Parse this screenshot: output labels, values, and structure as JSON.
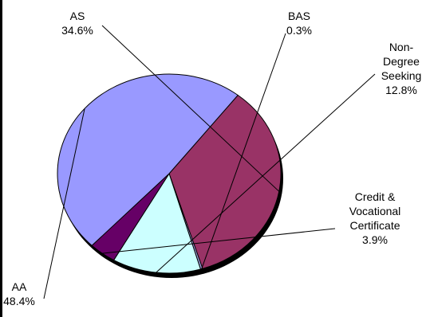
{
  "chart_data": {
    "type": "pie",
    "title": "",
    "slices": [
      {
        "label_lines": [
          "AS"
        ],
        "value": 34.6,
        "value_label": "34.6%",
        "color": "#993366"
      },
      {
        "label_lines": [
          "BAS"
        ],
        "value": 0.3,
        "value_label": "0.3%",
        "color": "#a0a0e0"
      },
      {
        "label_lines": [
          "Non-",
          "Degree",
          "Seeking"
        ],
        "value": 12.8,
        "value_label": "12.8%",
        "color": "#ccffff"
      },
      {
        "label_lines": [
          "Credit &",
          "Vocational",
          "Certificate"
        ],
        "value": 3.9,
        "value_label": "3.9%",
        "color": "#660066"
      },
      {
        "label_lines": [
          "AA"
        ],
        "value": 48.4,
        "value_label": "48.4%",
        "color": "#9999ff"
      }
    ],
    "legend": "none",
    "label_style": "callout"
  }
}
